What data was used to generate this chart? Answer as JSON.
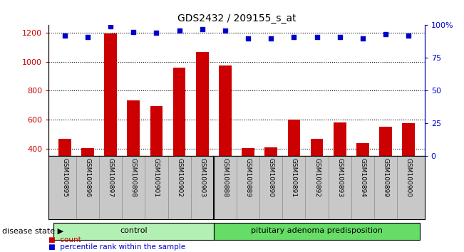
{
  "title": "GDS2432 / 209155_s_at",
  "samples": [
    "GSM100895",
    "GSM100896",
    "GSM100897",
    "GSM100898",
    "GSM100901",
    "GSM100902",
    "GSM100903",
    "GSM100888",
    "GSM100889",
    "GSM100890",
    "GSM100891",
    "GSM100892",
    "GSM100893",
    "GSM100894",
    "GSM100899",
    "GSM100900"
  ],
  "counts": [
    470,
    405,
    1195,
    735,
    695,
    960,
    1065,
    975,
    408,
    412,
    600,
    470,
    580,
    440,
    555,
    575
  ],
  "percentile_ranks": [
    92,
    91,
    99,
    95,
    94,
    96,
    97,
    96,
    90,
    90,
    91,
    91,
    91,
    90,
    93,
    92
  ],
  "groups": [
    {
      "label": "control",
      "start": 0,
      "end": 7,
      "color": "#b3f0b3"
    },
    {
      "label": "pituitary adenoma predisposition",
      "start": 7,
      "end": 16,
      "color": "#66dd66"
    }
  ],
  "control_count": 7,
  "ylim_left": [
    350,
    1250
  ],
  "ylim_right": [
    0,
    100
  ],
  "yticks_left": [
    400,
    600,
    800,
    1000,
    1200
  ],
  "yticks_right": [
    0,
    25,
    50,
    75,
    100
  ],
  "bar_color": "#cc0000",
  "dot_color": "#0000cc",
  "bg_color": "#c8c8c8",
  "legend_count_label": "count",
  "legend_pct_label": "percentile rank within the sample",
  "disease_state_label": "disease state",
  "title_color": "#000000",
  "left_tick_color": "#cc0000",
  "right_tick_color": "#0000cc"
}
